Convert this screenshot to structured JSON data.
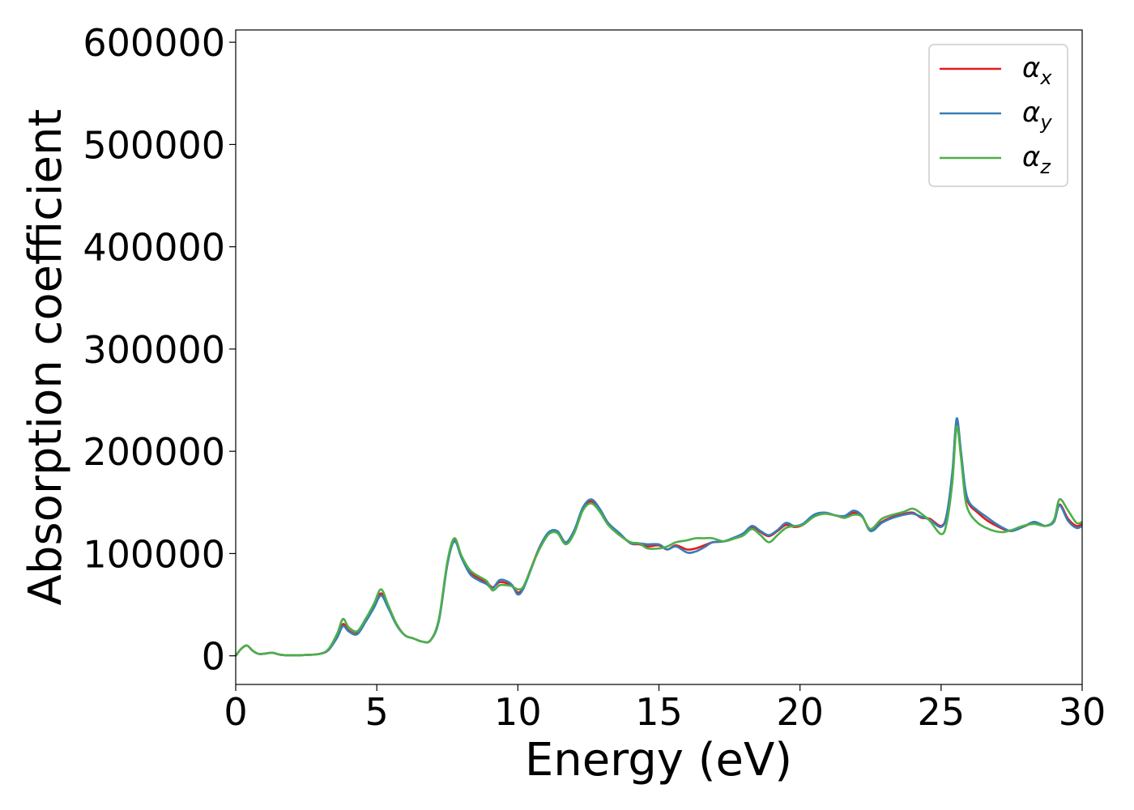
{
  "chart_data": {
    "type": "line",
    "xlabel": "Energy (eV)",
    "ylabel": "Absorption coefficient",
    "xlim": [
      0,
      30
    ],
    "ylim": [
      -28000,
      612000
    ],
    "xticks": [
      0,
      5,
      10,
      15,
      20,
      25,
      30
    ],
    "yticks": [
      0,
      100000,
      200000,
      300000,
      400000,
      500000,
      600000
    ],
    "grid": false,
    "legend_position": "top-right",
    "series": [
      {
        "name": "α_x",
        "symbol": "α",
        "subscript": "x",
        "color": "#e41a1c",
        "x": [
          0,
          0.2,
          0.4,
          0.6,
          0.8,
          1.0,
          1.3,
          1.6,
          2.0,
          2.5,
          3.0,
          3.3,
          3.6,
          3.8,
          4.0,
          4.3,
          4.6,
          4.9,
          5.15,
          5.4,
          5.7,
          6.0,
          6.3,
          6.6,
          6.9,
          7.2,
          7.5,
          7.75,
          8.0,
          8.3,
          8.6,
          8.9,
          9.1,
          9.35,
          9.6,
          9.8,
          10.0,
          10.2,
          10.5,
          10.8,
          11.1,
          11.4,
          11.7,
          12.0,
          12.3,
          12.6,
          12.9,
          13.2,
          13.6,
          14.0,
          14.3,
          14.6,
          15.0,
          15.3,
          15.6,
          16.0,
          16.3,
          16.6,
          16.9,
          17.3,
          17.7,
          18.0,
          18.3,
          18.6,
          18.9,
          19.2,
          19.5,
          19.8,
          20.1,
          20.5,
          20.9,
          21.3,
          21.6,
          21.9,
          22.2,
          22.5,
          22.9,
          23.3,
          23.7,
          24.0,
          24.3,
          24.6,
          25.0,
          25.2,
          25.4,
          25.55,
          25.7,
          25.85,
          26.0,
          26.3,
          26.6,
          26.9,
          27.2,
          27.5,
          27.9,
          28.3,
          28.7,
          29.0,
          29.2,
          29.5,
          29.8,
          30.0
        ],
        "y": [
          0,
          7000,
          10000,
          5000,
          2000,
          2000,
          3000,
          1000,
          500,
          800,
          2000,
          6000,
          19000,
          31000,
          25000,
          22000,
          34000,
          48000,
          61000,
          48000,
          31000,
          20000,
          17000,
          14000,
          15000,
          35000,
          90000,
          113000,
          97000,
          82000,
          76000,
          72000,
          67000,
          72000,
          71000,
          68000,
          62000,
          67000,
          88000,
          108000,
          120000,
          121000,
          110000,
          122000,
          144000,
          151000,
          142000,
          129000,
          119000,
          110000,
          109000,
          107000,
          108000,
          104000,
          108000,
          104000,
          105000,
          108000,
          111000,
          112000,
          115000,
          118000,
          126000,
          121000,
          117000,
          122000,
          128000,
          126000,
          128000,
          137000,
          139000,
          137000,
          135000,
          140000,
          136000,
          123000,
          131000,
          136000,
          139000,
          140000,
          135000,
          134000,
          127000,
          138000,
          178000,
          230000,
          200000,
          162000,
          148000,
          140000,
          133000,
          128000,
          124000,
          122000,
          126000,
          130000,
          127000,
          132000,
          148000,
          134000,
          127000,
          129000
        ]
      },
      {
        "name": "α_y",
        "symbol": "α",
        "subscript": "y",
        "color": "#377eb8",
        "x": [
          0,
          0.2,
          0.4,
          0.6,
          0.8,
          1.0,
          1.3,
          1.6,
          2.0,
          2.5,
          3.0,
          3.3,
          3.6,
          3.8,
          4.0,
          4.3,
          4.6,
          4.9,
          5.15,
          5.4,
          5.7,
          6.0,
          6.3,
          6.6,
          6.9,
          7.2,
          7.5,
          7.75,
          8.0,
          8.3,
          8.6,
          8.9,
          9.1,
          9.35,
          9.6,
          9.8,
          10.0,
          10.2,
          10.5,
          10.8,
          11.1,
          11.4,
          11.7,
          12.0,
          12.3,
          12.6,
          12.9,
          13.2,
          13.6,
          14.0,
          14.3,
          14.6,
          15.0,
          15.3,
          15.6,
          16.0,
          16.3,
          16.6,
          16.9,
          17.3,
          17.7,
          18.0,
          18.3,
          18.6,
          18.9,
          19.2,
          19.5,
          19.8,
          20.1,
          20.5,
          20.9,
          21.3,
          21.6,
          21.9,
          22.2,
          22.5,
          22.9,
          23.3,
          23.7,
          24.0,
          24.3,
          24.6,
          25.0,
          25.2,
          25.4,
          25.55,
          25.7,
          25.85,
          26.0,
          26.3,
          26.6,
          26.9,
          27.2,
          27.5,
          27.9,
          28.3,
          28.7,
          29.0,
          29.2,
          29.5,
          29.8,
          30.0
        ],
        "y": [
          0,
          7000,
          10000,
          5000,
          2000,
          2000,
          3000,
          1000,
          500,
          800,
          2000,
          6000,
          18000,
          29000,
          24000,
          21000,
          33000,
          47000,
          59000,
          47000,
          30000,
          20000,
          17000,
          14000,
          15000,
          34000,
          89000,
          112000,
          96000,
          80000,
          74000,
          70000,
          66000,
          74000,
          73000,
          69000,
          60000,
          66000,
          87000,
          108000,
          121000,
          122000,
          111000,
          123000,
          145000,
          153000,
          144000,
          130000,
          120000,
          110000,
          110000,
          109000,
          109000,
          104000,
          107000,
          101000,
          102000,
          106000,
          111000,
          112000,
          116000,
          120000,
          127000,
          122000,
          118000,
          123000,
          130000,
          127000,
          129000,
          138000,
          140000,
          137000,
          137000,
          142000,
          137000,
          122000,
          130000,
          135000,
          138000,
          139000,
          136000,
          133000,
          126000,
          138000,
          180000,
          232000,
          201000,
          165000,
          150000,
          142000,
          136000,
          130000,
          125000,
          122000,
          126000,
          131000,
          127000,
          131000,
          147000,
          132000,
          125000,
          127000
        ]
      },
      {
        "name": "α_z",
        "symbol": "α",
        "subscript": "z",
        "color": "#4daf4a",
        "x": [
          0,
          0.2,
          0.4,
          0.6,
          0.8,
          1.0,
          1.3,
          1.6,
          2.0,
          2.5,
          3.0,
          3.3,
          3.6,
          3.8,
          4.0,
          4.3,
          4.6,
          4.9,
          5.15,
          5.4,
          5.7,
          6.0,
          6.3,
          6.6,
          6.9,
          7.2,
          7.5,
          7.75,
          8.0,
          8.3,
          8.6,
          8.9,
          9.1,
          9.35,
          9.6,
          9.8,
          10.0,
          10.2,
          10.5,
          10.8,
          11.1,
          11.4,
          11.7,
          12.0,
          12.3,
          12.6,
          12.9,
          13.2,
          13.6,
          14.0,
          14.3,
          14.6,
          15.0,
          15.3,
          15.6,
          16.0,
          16.3,
          16.6,
          16.9,
          17.3,
          17.7,
          18.0,
          18.3,
          18.6,
          18.9,
          19.2,
          19.5,
          19.8,
          20.1,
          20.5,
          20.9,
          21.3,
          21.6,
          21.9,
          22.2,
          22.5,
          22.9,
          23.3,
          23.7,
          24.0,
          24.3,
          24.6,
          25.0,
          25.2,
          25.4,
          25.55,
          25.7,
          25.85,
          26.0,
          26.3,
          26.6,
          26.9,
          27.2,
          27.5,
          27.9,
          28.3,
          28.7,
          29.0,
          29.2,
          29.5,
          29.8,
          30.0
        ],
        "y": [
          0,
          7000,
          10000,
          5000,
          2000,
          2000,
          3000,
          1000,
          500,
          800,
          2000,
          7000,
          22000,
          36000,
          28000,
          24000,
          36000,
          51000,
          65000,
          50000,
          31000,
          20000,
          17000,
          14000,
          15000,
          36000,
          92000,
          115000,
          98000,
          84000,
          78000,
          73000,
          64000,
          69000,
          69000,
          68000,
          65000,
          68000,
          88000,
          106000,
          119000,
          120000,
          109000,
          120000,
          142000,
          149000,
          141000,
          128000,
          118000,
          111000,
          110000,
          105000,
          105000,
          107000,
          111000,
          113000,
          115000,
          115000,
          115000,
          112000,
          115000,
          118000,
          124000,
          118000,
          111000,
          118000,
          125000,
          127000,
          128000,
          136000,
          139000,
          137000,
          135000,
          138000,
          136000,
          124000,
          134000,
          138000,
          141000,
          144000,
          139000,
          132000,
          119000,
          130000,
          170000,
          224000,
          195000,
          155000,
          140000,
          130000,
          125000,
          122000,
          121000,
          123000,
          127000,
          129000,
          127000,
          133000,
          153000,
          142000,
          130000,
          131000
        ]
      }
    ]
  }
}
